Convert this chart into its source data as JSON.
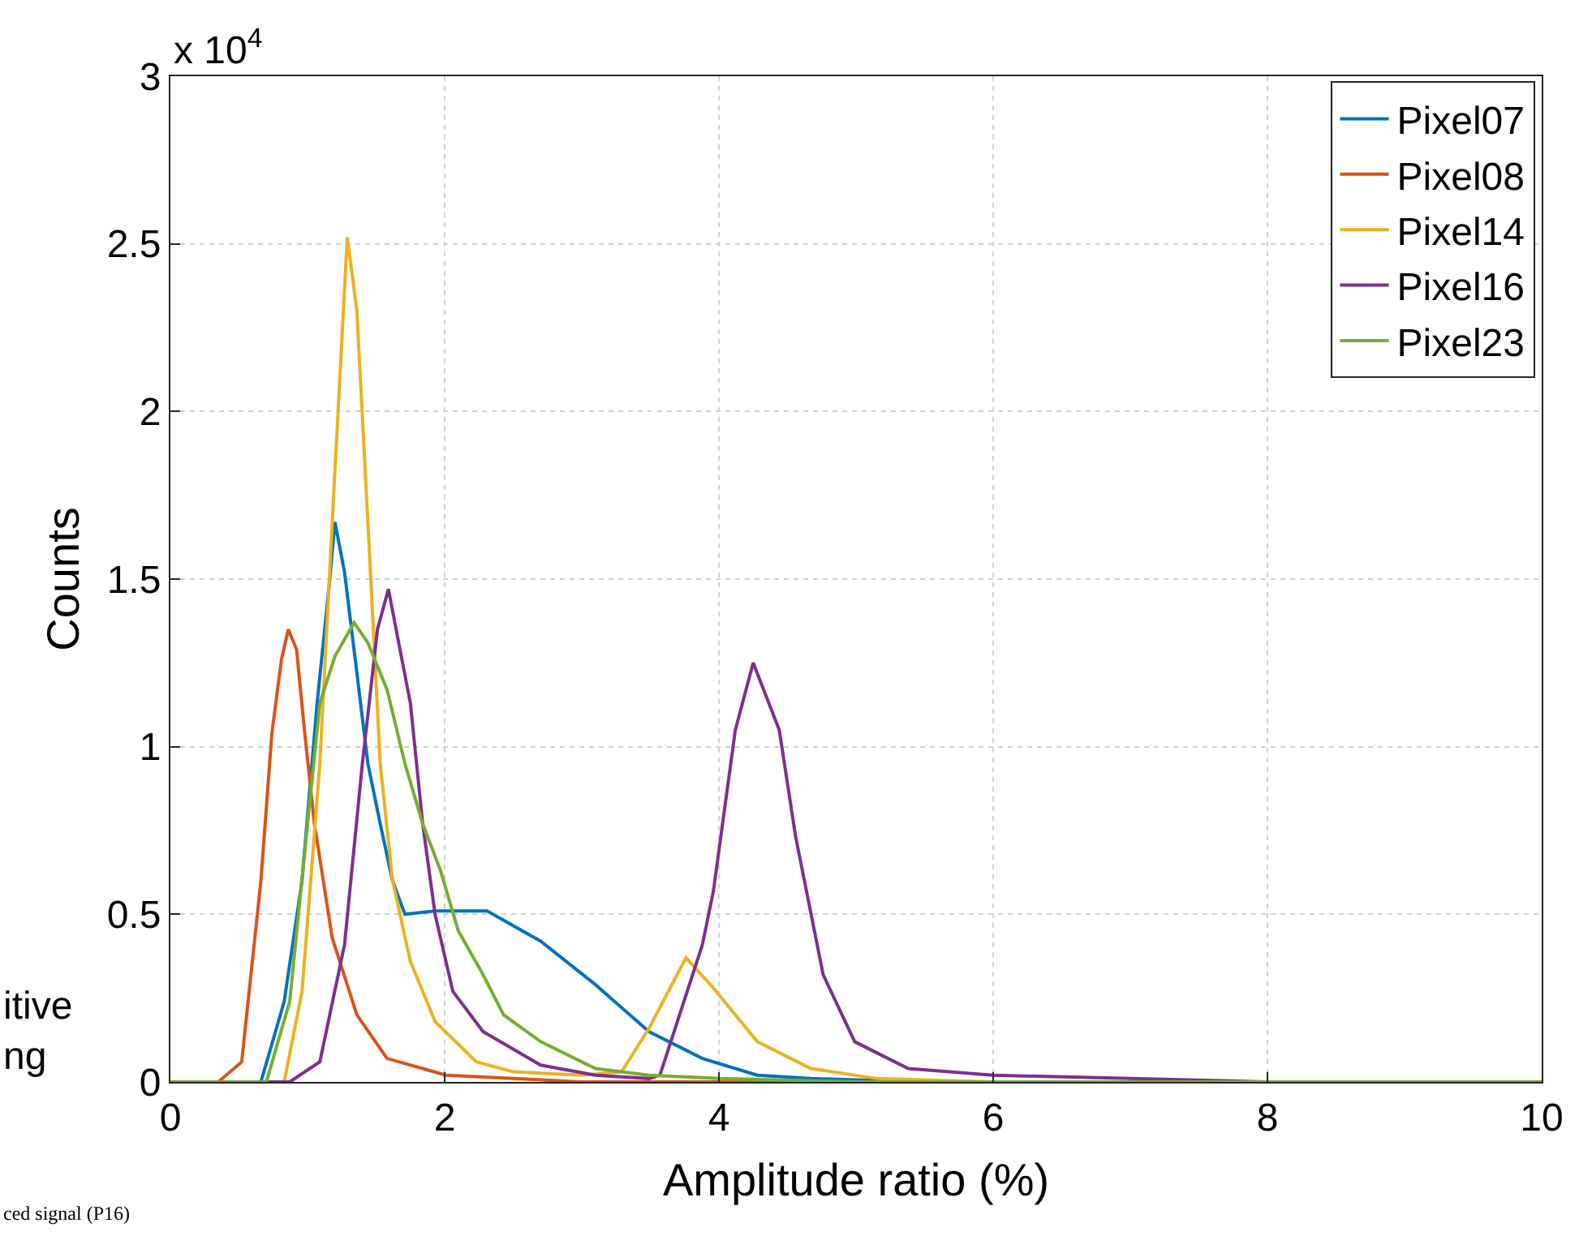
{
  "chart_data": {
    "type": "line",
    "xlabel": "Amplitude ratio (%)",
    "ylabel": "Counts",
    "xlim": [
      0,
      10
    ],
    "xticks": [
      0,
      2,
      4,
      6,
      8,
      10
    ],
    "ylim": [
      0,
      3
    ],
    "yticks": [
      0,
      0.5,
      1,
      1.5,
      2,
      2.5,
      3
    ],
    "grid": true,
    "legend": "top right",
    "marker": "none",
    "line_style": "solid",
    "annotations": [
      "x 10$^{4}$",
      "itive\nng",
      "ced signal (P16)"
    ],
    "series": [
      {
        "name": "Pixel07",
        "color": "#0072bd",
        "x": [
          0,
          0.66,
          0.83,
          0.96,
          1.07,
          1.16,
          1.2,
          1.27,
          1.36,
          1.44,
          1.53,
          1.62,
          1.71,
          1.93,
          2.31,
          2.7,
          3.1,
          3.49,
          3.88,
          4.28,
          4.67,
          5.5,
          10
        ],
        "values": [
          0,
          0,
          0.24,
          0.6,
          1.13,
          1.49,
          1.67,
          1.52,
          1.22,
          0.95,
          0.77,
          0.6,
          0.5,
          0.51,
          0.51,
          0.42,
          0.29,
          0.15,
          0.07,
          0.02,
          0.01,
          0,
          0
        ]
      },
      {
        "name": "Pixel08",
        "color": "#d95319",
        "x": [
          0,
          0.35,
          0.52,
          0.66,
          0.74,
          0.81,
          0.86,
          0.92,
          0.98,
          1.05,
          1.18,
          1.36,
          1.58,
          2.01,
          2.5,
          3,
          10
        ],
        "values": [
          0,
          0,
          0.06,
          0.6,
          1.04,
          1.26,
          1.35,
          1.29,
          1.04,
          0.77,
          0.43,
          0.2,
          0.07,
          0.02,
          0.01,
          0,
          0
        ]
      },
      {
        "name": "Pixel14",
        "color": "#edb120",
        "x": [
          0,
          0.83,
          0.96,
          1.09,
          1.18,
          1.25,
          1.29,
          1.36,
          1.44,
          1.53,
          1.62,
          1.75,
          1.93,
          2.23,
          2.5,
          3,
          3.29,
          3.49,
          3.76,
          3.96,
          4.28,
          4.67,
          5.15,
          6,
          10
        ],
        "values": [
          0,
          0,
          0.27,
          0.95,
          1.67,
          2.21,
          2.52,
          2.3,
          1.67,
          0.95,
          0.6,
          0.36,
          0.18,
          0.06,
          0.03,
          0.02,
          0.03,
          0.16,
          0.37,
          0.28,
          0.12,
          0.04,
          0.01,
          0,
          0
        ]
      },
      {
        "name": "Pixel16",
        "color": "#7e2f8e",
        "x": [
          0,
          0.87,
          1.09,
          1.27,
          1.4,
          1.51,
          1.59,
          1.66,
          1.75,
          1.84,
          1.93,
          2.06,
          2.28,
          2.7,
          3.1,
          3.49,
          3.57,
          3.88,
          3.96,
          4.12,
          4.25,
          4.44,
          4.56,
          4.76,
          4.99,
          5.38,
          6,
          7,
          8,
          10
        ],
        "values": [
          0,
          0,
          0.06,
          0.41,
          0.95,
          1.35,
          1.47,
          1.32,
          1.13,
          0.77,
          0.5,
          0.27,
          0.15,
          0.05,
          0.02,
          0.01,
          0.02,
          0.41,
          0.57,
          1.05,
          1.25,
          1.05,
          0.73,
          0.32,
          0.12,
          0.04,
          0.02,
          0.01,
          0,
          0
        ]
      },
      {
        "name": "Pixel23",
        "color": "#77ac30",
        "x": [
          0,
          0.7,
          0.87,
          1.0,
          1.09,
          1.2,
          1.34,
          1.44,
          1.58,
          1.71,
          1.84,
          1.97,
          2.1,
          2.28,
          2.43,
          2.7,
          3.1,
          3.49,
          4,
          5,
          10
        ],
        "values": [
          0,
          0,
          0.24,
          0.77,
          1.13,
          1.27,
          1.37,
          1.31,
          1.17,
          0.95,
          0.77,
          0.63,
          0.45,
          0.32,
          0.2,
          0.12,
          0.04,
          0.02,
          0.01,
          0,
          0
        ]
      }
    ]
  }
}
